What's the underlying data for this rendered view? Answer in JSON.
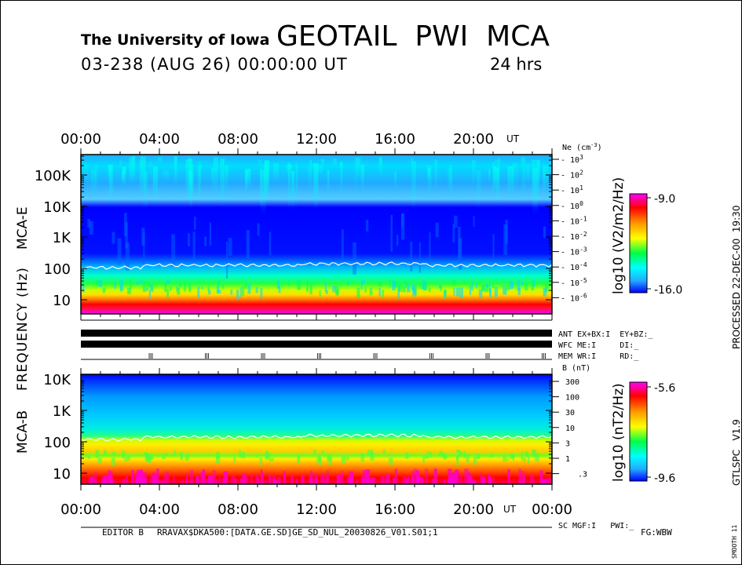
{
  "header": {
    "institution": "The University of Iowa",
    "title": "GEOTAIL  PWI  MCA",
    "subtitle": "03-238 (AUG 26) 00:00:00 UT",
    "span": "24 hrs"
  },
  "right_margin": {
    "processed": "PROCESSED 22-DEC-00  19:30",
    "version": "GTLSPC   V1.9",
    "smooth": "SMOOTH 11"
  },
  "footer": {
    "editor": "EDITOR B",
    "file": "RRAVAX$DKA500:[DATA.GE.SD]GE_SD_NUL_20030826_V01.S01;1",
    "fg": "FG:WBW"
  },
  "status": {
    "ant": "ANT EX+BX:I  EY+BZ:_",
    "wfc": "WFC ME:I     DI:_",
    "mem": "MEM WR:I     RD:_",
    "sc": "SC MGF:I   PWI:_"
  },
  "colors": {
    "magenta": "#ff00ff",
    "red": "#ff0000",
    "orange": "#ff9900",
    "yellow": "#ffff00",
    "green": "#00ff44",
    "cyan": "#00ffff",
    "sky": "#22aaff",
    "blue": "#0000ff"
  },
  "chart_data": [
    {
      "type": "heatmap",
      "panel": "MCA-E",
      "ylabel": "FREQUENCY (Hz)",
      "panel_label": "MCA-E",
      "x_ticks": [
        "00:00",
        "04:00",
        "08:00",
        "12:00",
        "16:00",
        "20:00"
      ],
      "x_unit": "UT",
      "y_ticks": [
        "10",
        "100",
        "1K",
        "10K",
        "100K"
      ],
      "yscale": "log",
      "right_axis_label": "Ne (cm-3)",
      "right_axis": [
        {
          "base": "10",
          "exp": "3"
        },
        {
          "base": "10",
          "exp": "2"
        },
        {
          "base": "10",
          "exp": "1"
        },
        {
          "base": "10",
          "exp": "0"
        },
        {
          "base": "10",
          "exp": "-1"
        },
        {
          "base": "10",
          "exp": "-2"
        },
        {
          "base": "10",
          "exp": "-3"
        },
        {
          "base": "10",
          "exp": "-4"
        },
        {
          "base": "10",
          "exp": "-5"
        },
        {
          "base": "10",
          "exp": "-6"
        }
      ],
      "colorbar_label": "log10 (V2/m2/Hz)",
      "colorbar_range": [
        -16.0,
        -9.0
      ],
      "colorbar_max_label": "-9.0",
      "colorbar_min_label": "-16.0"
    },
    {
      "type": "heatmap",
      "panel": "MCA-B",
      "panel_label": "MCA-B",
      "x_ticks": [
        "00:00",
        "04:00",
        "08:00",
        "12:00",
        "16:00",
        "20:00",
        "00:00"
      ],
      "x_unit": "UT",
      "y_ticks": [
        "10",
        "100",
        "1K",
        "10K"
      ],
      "yscale": "log",
      "right_axis_label": "B (nT)",
      "right_axis": [
        "300",
        "100",
        "30",
        "10",
        "3",
        "1",
        ".3"
      ],
      "colorbar_label": "log10 (nT2/Hz)",
      "colorbar_range": [
        -9.6,
        -5.6
      ],
      "colorbar_max_label": "-5.6",
      "colorbar_min_label": "-9.6"
    }
  ]
}
